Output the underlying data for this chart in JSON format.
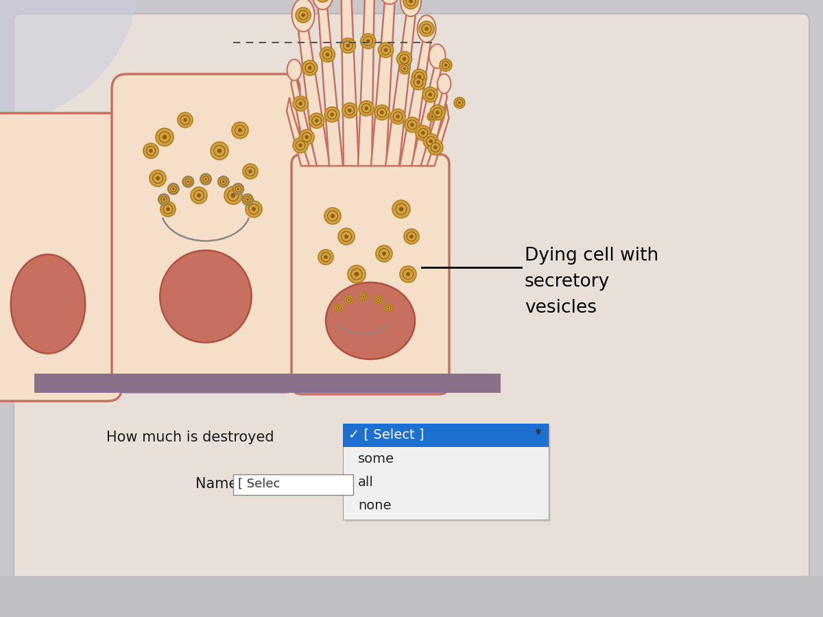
{
  "bg_outer": "#c8c8cc",
  "bg_inner": "#e8e0d8",
  "cell_fill": "#f5dfc8",
  "cell_outline": "#c87060",
  "nucleus_fill": "#c87060",
  "nucleus_outline": "#b05040",
  "vesicle_fill": "#d4a040",
  "vesicle_outline": "#b08020",
  "vesicle_inner": "#8a6010",
  "golgi_color": "#888888",
  "floor_color": "#8a7088",
  "label_text": "Dying cell with\nsecretory\nvesicles",
  "label_fontsize": 19,
  "question_text": "How much is destroyed",
  "question_fontsize": 15,
  "name_label": "Name:",
  "select_box_text": "[ Selec",
  "dropdown_selected": "✓ [ Select ]",
  "dropdown_options": [
    "some",
    "all",
    "none"
  ],
  "dropdown_selected_color": "#1e70d0",
  "dashed_line_color": "#555555"
}
